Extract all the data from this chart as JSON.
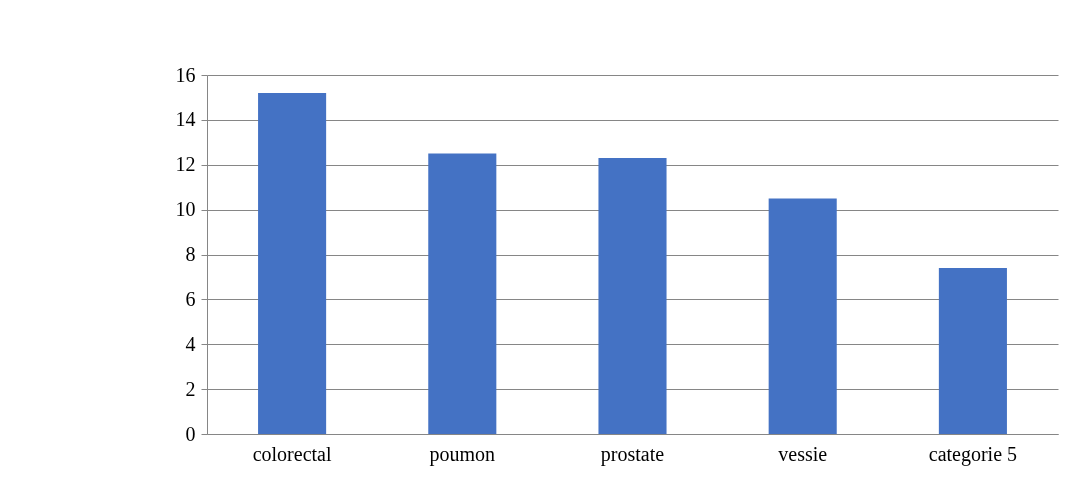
{
  "chart_data": {
    "type": "bar",
    "categories": [
      "colorectal",
      "poumon",
      "prostate",
      "vessie",
      "categorie 5"
    ],
    "values": [
      15.2,
      12.5,
      12.3,
      10.5,
      7.4
    ],
    "color": "#4472c4",
    "ylim": [
      0,
      16
    ],
    "yticks": [
      0,
      2,
      4,
      6,
      8,
      10,
      12,
      14,
      16
    ],
    "grid": "y"
  }
}
